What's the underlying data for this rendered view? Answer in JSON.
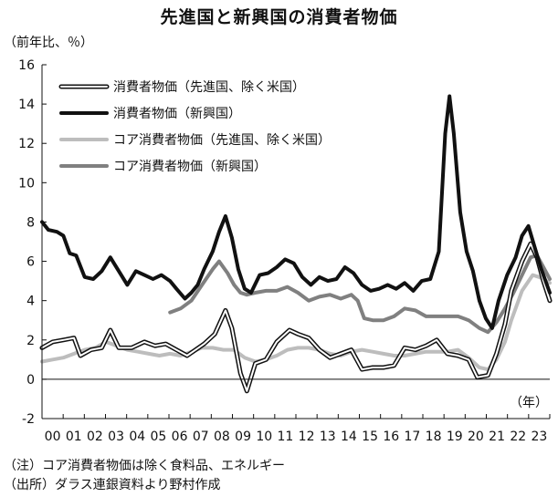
{
  "title": "先進国と新興国の消費者物価",
  "y_unit": "（前年比、％）",
  "x_unit": "（年）",
  "notes": [
    "（注）コア消費者物価は除く食料品、エネルギー",
    "（出所）ダラス連銀資料より野村作成"
  ],
  "chart_data": {
    "type": "line",
    "title": "先進国と新興国の消費者物価",
    "ylabel": "（前年比、％）",
    "xlabel": "（年）",
    "xlim": [
      2000,
      2023.8
    ],
    "ylim": [
      -2,
      16
    ],
    "yticks": [
      -2,
      0,
      2,
      4,
      6,
      8,
      10,
      12,
      14,
      16
    ],
    "xtick_labels": [
      "00",
      "01",
      "02",
      "03",
      "04",
      "05",
      "06",
      "07",
      "08",
      "09",
      "10",
      "11",
      "12",
      "13",
      "14",
      "15",
      "16",
      "17",
      "18",
      "19",
      "20",
      "21",
      "22",
      "23"
    ],
    "grid": false,
    "legend_position": "top-left",
    "series": [
      {
        "name": "消費者物価（先進国、除く米国）",
        "color": "#111111",
        "style": "hollow",
        "points": [
          [
            2000.0,
            1.6
          ],
          [
            2000.5,
            1.9
          ],
          [
            2001.0,
            2.0
          ],
          [
            2001.5,
            2.1
          ],
          [
            2001.8,
            1.2
          ],
          [
            2002.3,
            1.5
          ],
          [
            2002.8,
            1.6
          ],
          [
            2003.2,
            2.5
          ],
          [
            2003.6,
            1.6
          ],
          [
            2004.2,
            1.6
          ],
          [
            2004.8,
            1.9
          ],
          [
            2005.3,
            1.7
          ],
          [
            2005.8,
            1.8
          ],
          [
            2006.3,
            1.5
          ],
          [
            2006.8,
            1.2
          ],
          [
            2007.2,
            1.5
          ],
          [
            2007.6,
            1.8
          ],
          [
            2008.1,
            2.3
          ],
          [
            2008.6,
            3.5
          ],
          [
            2008.9,
            2.6
          ],
          [
            2009.3,
            0.3
          ],
          [
            2009.6,
            -0.6
          ],
          [
            2010.0,
            0.8
          ],
          [
            2010.5,
            1.0
          ],
          [
            2011.0,
            1.9
          ],
          [
            2011.6,
            2.5
          ],
          [
            2012.0,
            2.3
          ],
          [
            2012.5,
            2.1
          ],
          [
            2013.0,
            1.5
          ],
          [
            2013.5,
            1.1
          ],
          [
            2014.0,
            1.3
          ],
          [
            2014.5,
            1.5
          ],
          [
            2015.0,
            0.5
          ],
          [
            2015.5,
            0.6
          ],
          [
            2016.0,
            0.6
          ],
          [
            2016.5,
            0.7
          ],
          [
            2017.0,
            1.6
          ],
          [
            2017.5,
            1.5
          ],
          [
            2018.0,
            1.7
          ],
          [
            2018.5,
            2.0
          ],
          [
            2019.0,
            1.3
          ],
          [
            2019.5,
            1.2
          ],
          [
            2020.0,
            1.0
          ],
          [
            2020.4,
            0.1
          ],
          [
            2020.9,
            0.2
          ],
          [
            2021.3,
            1.3
          ],
          [
            2021.7,
            2.8
          ],
          [
            2022.0,
            4.5
          ],
          [
            2022.5,
            6.0
          ],
          [
            2022.9,
            6.9
          ],
          [
            2023.2,
            6.2
          ],
          [
            2023.5,
            5.0
          ],
          [
            2023.8,
            4.0
          ]
        ]
      },
      {
        "name": "消費者物価（新興国）",
        "color": "#111111",
        "style": "thick",
        "points": [
          [
            2000.0,
            8.0
          ],
          [
            2000.3,
            7.6
          ],
          [
            2000.7,
            7.5
          ],
          [
            2001.0,
            7.3
          ],
          [
            2001.3,
            6.4
          ],
          [
            2001.6,
            6.3
          ],
          [
            2002.0,
            5.2
          ],
          [
            2002.4,
            5.1
          ],
          [
            2002.8,
            5.5
          ],
          [
            2003.2,
            6.2
          ],
          [
            2003.6,
            5.5
          ],
          [
            2004.0,
            4.8
          ],
          [
            2004.4,
            5.5
          ],
          [
            2004.8,
            5.3
          ],
          [
            2005.2,
            5.1
          ],
          [
            2005.6,
            5.3
          ],
          [
            2006.0,
            5.0
          ],
          [
            2006.3,
            4.6
          ],
          [
            2006.7,
            4.1
          ],
          [
            2007.0,
            4.4
          ],
          [
            2007.3,
            4.8
          ],
          [
            2007.6,
            5.6
          ],
          [
            2008.0,
            6.5
          ],
          [
            2008.3,
            7.5
          ],
          [
            2008.6,
            8.3
          ],
          [
            2008.9,
            7.2
          ],
          [
            2009.2,
            5.6
          ],
          [
            2009.5,
            4.6
          ],
          [
            2009.8,
            4.4
          ],
          [
            2010.2,
            5.3
          ],
          [
            2010.6,
            5.4
          ],
          [
            2011.0,
            5.7
          ],
          [
            2011.4,
            6.1
          ],
          [
            2011.8,
            5.9
          ],
          [
            2012.2,
            5.2
          ],
          [
            2012.6,
            4.8
          ],
          [
            2013.0,
            5.2
          ],
          [
            2013.4,
            5.0
          ],
          [
            2013.8,
            5.1
          ],
          [
            2014.2,
            5.7
          ],
          [
            2014.6,
            5.4
          ],
          [
            2015.0,
            4.8
          ],
          [
            2015.4,
            4.5
          ],
          [
            2015.8,
            4.6
          ],
          [
            2016.2,
            4.8
          ],
          [
            2016.6,
            4.6
          ],
          [
            2017.0,
            4.9
          ],
          [
            2017.4,
            4.5
          ],
          [
            2017.8,
            5.0
          ],
          [
            2018.2,
            5.1
          ],
          [
            2018.6,
            6.5
          ],
          [
            2018.9,
            12.5
          ],
          [
            2019.1,
            14.4
          ],
          [
            2019.3,
            12.5
          ],
          [
            2019.6,
            8.5
          ],
          [
            2019.9,
            6.5
          ],
          [
            2020.2,
            5.5
          ],
          [
            2020.5,
            4.0
          ],
          [
            2020.8,
            3.1
          ],
          [
            2021.1,
            2.6
          ],
          [
            2021.4,
            4.0
          ],
          [
            2021.8,
            5.3
          ],
          [
            2022.2,
            6.2
          ],
          [
            2022.5,
            7.3
          ],
          [
            2022.8,
            7.8
          ],
          [
            2023.1,
            6.7
          ],
          [
            2023.4,
            5.6
          ],
          [
            2023.8,
            4.4
          ]
        ]
      },
      {
        "name": "コア消費者物価（先進国、除く米国）",
        "color": "#bdbdbd",
        "style": "thick",
        "points": [
          [
            2000.0,
            0.9
          ],
          [
            2000.5,
            1.0
          ],
          [
            2001.0,
            1.1
          ],
          [
            2001.5,
            1.3
          ],
          [
            2002.0,
            1.5
          ],
          [
            2002.5,
            1.6
          ],
          [
            2003.0,
            1.9
          ],
          [
            2003.5,
            1.7
          ],
          [
            2004.0,
            1.5
          ],
          [
            2004.5,
            1.4
          ],
          [
            2005.0,
            1.3
          ],
          [
            2005.5,
            1.2
          ],
          [
            2006.0,
            1.3
          ],
          [
            2006.5,
            1.2
          ],
          [
            2007.0,
            1.4
          ],
          [
            2007.5,
            1.6
          ],
          [
            2008.0,
            1.6
          ],
          [
            2008.5,
            1.5
          ],
          [
            2009.0,
            1.5
          ],
          [
            2009.5,
            1.1
          ],
          [
            2010.0,
            0.9
          ],
          [
            2010.5,
            1.0
          ],
          [
            2011.0,
            1.2
          ],
          [
            2011.5,
            1.5
          ],
          [
            2012.0,
            1.6
          ],
          [
            2012.5,
            1.6
          ],
          [
            2013.0,
            1.5
          ],
          [
            2013.5,
            1.3
          ],
          [
            2014.0,
            1.2
          ],
          [
            2014.5,
            1.4
          ],
          [
            2015.0,
            1.5
          ],
          [
            2015.5,
            1.4
          ],
          [
            2016.0,
            1.3
          ],
          [
            2016.5,
            1.2
          ],
          [
            2017.0,
            1.2
          ],
          [
            2017.5,
            1.3
          ],
          [
            2018.0,
            1.4
          ],
          [
            2018.5,
            1.4
          ],
          [
            2019.0,
            1.4
          ],
          [
            2019.5,
            1.5
          ],
          [
            2020.0,
            1.1
          ],
          [
            2020.5,
            0.6
          ],
          [
            2020.9,
            0.5
          ],
          [
            2021.3,
            1.0
          ],
          [
            2021.7,
            1.9
          ],
          [
            2022.0,
            3.0
          ],
          [
            2022.5,
            4.5
          ],
          [
            2023.0,
            5.3
          ],
          [
            2023.3,
            5.2
          ],
          [
            2023.8,
            4.9
          ]
        ]
      },
      {
        "name": "コア消費者物価（新興国）",
        "color": "#808080",
        "style": "thick",
        "points": [
          [
            2006.0,
            3.4
          ],
          [
            2006.5,
            3.6
          ],
          [
            2007.0,
            4.0
          ],
          [
            2007.5,
            4.8
          ],
          [
            2008.0,
            5.6
          ],
          [
            2008.3,
            6.0
          ],
          [
            2008.7,
            5.4
          ],
          [
            2009.0,
            4.8
          ],
          [
            2009.3,
            4.4
          ],
          [
            2009.6,
            4.3
          ],
          [
            2010.0,
            4.4
          ],
          [
            2010.5,
            4.5
          ],
          [
            2011.0,
            4.5
          ],
          [
            2011.5,
            4.7
          ],
          [
            2012.0,
            4.4
          ],
          [
            2012.5,
            4.0
          ],
          [
            2013.0,
            4.2
          ],
          [
            2013.5,
            4.3
          ],
          [
            2014.0,
            4.1
          ],
          [
            2014.5,
            4.3
          ],
          [
            2014.8,
            4.0
          ],
          [
            2015.1,
            3.1
          ],
          [
            2015.5,
            3.0
          ],
          [
            2016.0,
            3.0
          ],
          [
            2016.5,
            3.2
          ],
          [
            2017.0,
            3.6
          ],
          [
            2017.5,
            3.5
          ],
          [
            2018.0,
            3.2
          ],
          [
            2018.5,
            3.2
          ],
          [
            2019.0,
            3.2
          ],
          [
            2019.5,
            3.2
          ],
          [
            2020.0,
            3.0
          ],
          [
            2020.5,
            2.6
          ],
          [
            2020.9,
            2.4
          ],
          [
            2021.3,
            2.9
          ],
          [
            2021.7,
            3.6
          ],
          [
            2022.1,
            4.4
          ],
          [
            2022.5,
            5.3
          ],
          [
            2022.9,
            6.2
          ],
          [
            2023.2,
            6.3
          ],
          [
            2023.5,
            5.7
          ],
          [
            2023.8,
            5.1
          ]
        ]
      }
    ]
  }
}
